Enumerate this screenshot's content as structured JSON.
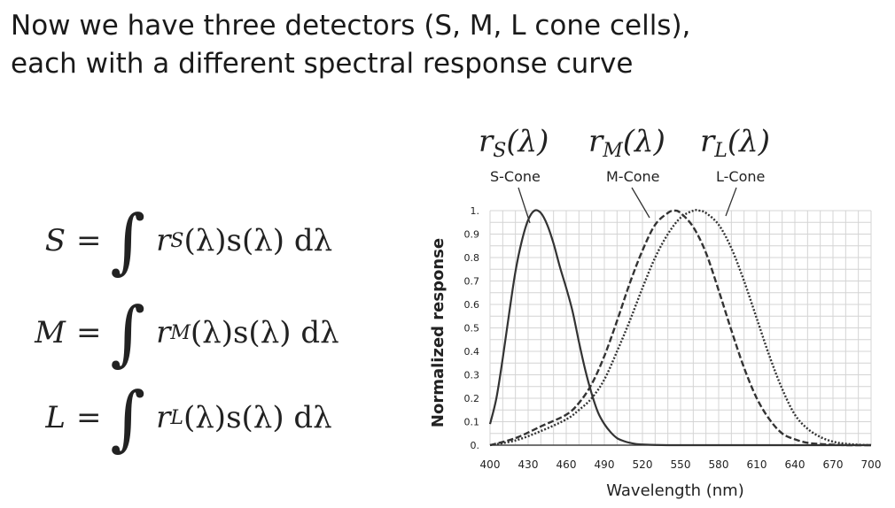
{
  "slide": {
    "title_line1": "Now we have three detectors (S, M, L cone cells),",
    "title_line2": "each with a different spectral response curve"
  },
  "equations": [
    {
      "lhs": "S",
      "r": "r",
      "sub": "S",
      "body": "(λ)s(λ) dλ"
    },
    {
      "lhs": "M",
      "r": "r",
      "sub": "M",
      "body": "(λ)s(λ) dλ"
    },
    {
      "lhs": "L",
      "r": "r",
      "sub": "L",
      "body": "(λ)s(λ) dλ"
    }
  ],
  "chart_data": {
    "type": "line",
    "xlabel": "Wavelength (nm)",
    "ylabel": "Normalized response",
    "xlim": [
      400,
      700
    ],
    "ylim": [
      0,
      1
    ],
    "x_ticks": [
      "400",
      "430",
      "460",
      "490",
      "520",
      "550",
      "580",
      "610",
      "640",
      "670",
      "700"
    ],
    "y_ticks": [
      "0.",
      "0.1",
      "0.2",
      "0.3",
      "0.4",
      "0.5",
      "0.6",
      "0.7",
      "0.8",
      "0.9",
      "1."
    ],
    "grid": true,
    "annotations": [
      {
        "formula": "r",
        "sub": "S",
        "arg": "(λ)",
        "label": "S-Cone"
      },
      {
        "formula": "r",
        "sub": "M",
        "arg": "(λ)",
        "label": "M-Cone"
      },
      {
        "formula": "r",
        "sub": "L",
        "arg": "(λ)",
        "label": "L-Cone"
      }
    ],
    "series": [
      {
        "style": "solid",
        "color": "#333333",
        "x": [
          400,
          405,
          410,
          415,
          420,
          425,
          430,
          435,
          440,
          445,
          450,
          455,
          460,
          465,
          470,
          475,
          480,
          485,
          490,
          495,
          500,
          505,
          510,
          515,
          520,
          530,
          540,
          550,
          560,
          580,
          600,
          700
        ],
        "y": [
          0.09,
          0.2,
          0.37,
          0.56,
          0.74,
          0.87,
          0.96,
          1.0,
          0.99,
          0.94,
          0.86,
          0.76,
          0.67,
          0.57,
          0.44,
          0.32,
          0.22,
          0.14,
          0.09,
          0.055,
          0.03,
          0.018,
          0.01,
          0.005,
          0.003,
          0.001,
          0.0,
          0.0,
          0.0,
          0.0,
          0.0,
          0.0
        ]
      },
      {
        "style": "dashed",
        "color": "#333333",
        "x": [
          400,
          420,
          440,
          460,
          470,
          480,
          490,
          500,
          510,
          520,
          530,
          540,
          545,
          550,
          560,
          570,
          580,
          590,
          600,
          610,
          620,
          630,
          640,
          650,
          660,
          670,
          680,
          700
        ],
        "y": [
          0.0,
          0.03,
          0.08,
          0.13,
          0.18,
          0.26,
          0.38,
          0.53,
          0.69,
          0.83,
          0.94,
          0.99,
          1.0,
          0.99,
          0.93,
          0.82,
          0.66,
          0.49,
          0.33,
          0.2,
          0.11,
          0.05,
          0.025,
          0.01,
          0.005,
          0.002,
          0.0,
          0.0
        ]
      },
      {
        "style": "dotted",
        "color": "#333333",
        "x": [
          400,
          420,
          440,
          460,
          470,
          480,
          490,
          500,
          510,
          520,
          530,
          540,
          550,
          560,
          565,
          570,
          580,
          590,
          600,
          610,
          620,
          630,
          640,
          650,
          660,
          670,
          680,
          690,
          700
        ],
        "y": [
          0.0,
          0.02,
          0.06,
          0.11,
          0.15,
          0.2,
          0.28,
          0.4,
          0.53,
          0.67,
          0.8,
          0.9,
          0.97,
          1.0,
          1.0,
          0.99,
          0.94,
          0.84,
          0.7,
          0.54,
          0.38,
          0.24,
          0.13,
          0.07,
          0.035,
          0.015,
          0.006,
          0.002,
          0.0
        ]
      }
    ]
  }
}
